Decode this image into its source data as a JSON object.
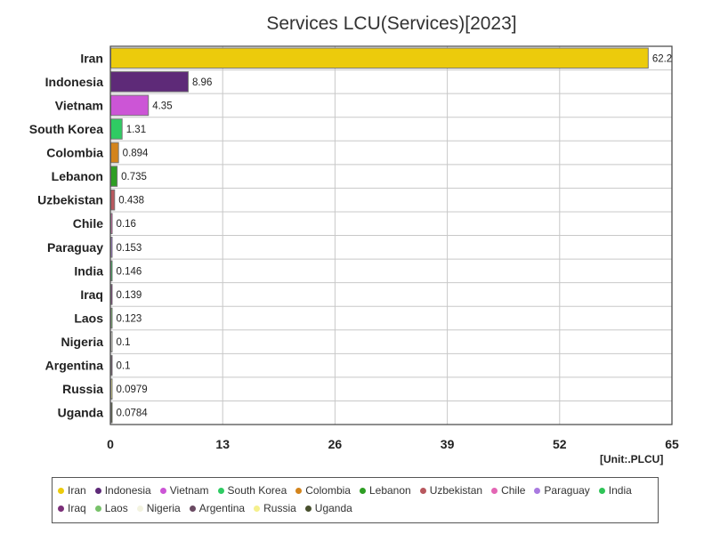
{
  "chart_data": {
    "type": "bar",
    "orientation": "horizontal",
    "title": "Services LCU(Services)[2023]",
    "unit": "[Unit:.PLCU]",
    "xlim": [
      0,
      65
    ],
    "xticks": [
      "0",
      "13",
      "26",
      "39",
      "52",
      "65"
    ],
    "grid": true,
    "legend_position": "bottom",
    "categories": [
      "Iran",
      "Indonesia",
      "Vietnam",
      "South Korea",
      "Colombia",
      "Lebanon",
      "Uzbekistan",
      "Chile",
      "Paraguay",
      "India",
      "Iraq",
      "Laos",
      "Nigeria",
      "Argentina",
      "Russia",
      "Uganda"
    ],
    "values": [
      62.2,
      8.96,
      4.35,
      1.31,
      0.894,
      0.735,
      0.438,
      0.16,
      0.153,
      0.146,
      0.139,
      0.123,
      0.1,
      0.1,
      0.0979,
      0.0784
    ],
    "value_labels": [
      "62.2",
      "8.96",
      "4.35",
      "1.31",
      "0.894",
      "0.735",
      "0.438",
      "0.16",
      "0.153",
      "0.146",
      "0.139",
      "0.123",
      "0.1",
      "0.1",
      "0.0979",
      "0.0784"
    ],
    "colors": [
      "#eccb0c",
      "#5e2a78",
      "#cc55d6",
      "#2fcb63",
      "#d3841c",
      "#2e9e24",
      "#b8585e",
      "#e366b4",
      "#a97ae0",
      "#2fc457",
      "#7b2f78",
      "#78c26a",
      "#f3f3e0",
      "#6a4a62",
      "#f5f08c",
      "#48502e"
    ]
  }
}
